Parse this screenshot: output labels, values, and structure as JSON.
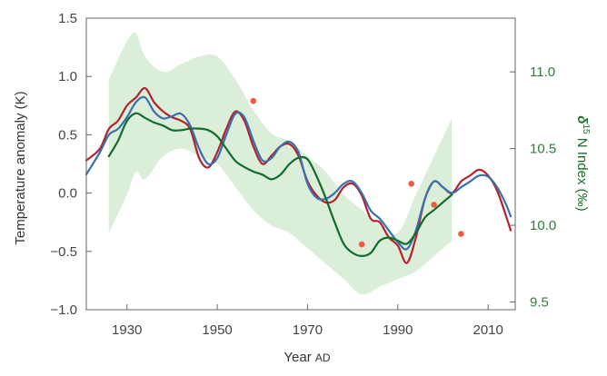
{
  "chart_data": {
    "type": "line",
    "xlabel": "Year",
    "xlabel_suffix": "AD",
    "ylabel": "Temperature anomaly  (K)",
    "ylabel_right_symbol": "δ",
    "ylabel_right_sup": "15",
    "ylabel_right_rest": " N Index  (‰)",
    "xlim": [
      1921,
      2016
    ],
    "ylim": [
      -1.0,
      1.5
    ],
    "ylim_right": [
      9.45,
      11.35
    ],
    "x_ticks": [
      1930,
      1950,
      1970,
      1990,
      2010
    ],
    "x_tick_labels": [
      "1930",
      "1950",
      "1970",
      "1990",
      "2010"
    ],
    "y_ticks": [
      -1.0,
      -0.5,
      0.0,
      0.5,
      1.0,
      1.5
    ],
    "y_tick_labels": [
      "−1.0",
      "−0.5",
      "0.0",
      "0.5",
      "1.0",
      "1.5"
    ],
    "y_right_ticks": [
      9.5,
      10.0,
      10.5,
      11.0
    ],
    "y_right_tick_labels": [
      "9.5",
      "10.0",
      "10.5",
      "11.0"
    ],
    "colors": {
      "red": "#b3232a",
      "blue": "#3a6fb0",
      "green": "#136b2e",
      "band": "#cfe8cc",
      "points": "#ef5a3c",
      "axis": "#666666",
      "right_axis": "#2e7d3a"
    },
    "band": {
      "x": [
        1926,
        1930,
        1932,
        1934,
        1938,
        1942,
        1946,
        1950,
        1954,
        1958,
        1962,
        1966,
        1970,
        1974,
        1978,
        1982,
        1986,
        1990,
        1994,
        1998,
        2002
      ],
      "upper": [
        10.95,
        11.2,
        11.25,
        11.1,
        11.0,
        11.05,
        11.1,
        11.1,
        10.95,
        10.75,
        10.6,
        10.55,
        10.45,
        10.35,
        10.2,
        10.1,
        10.0,
        9.95,
        10.2,
        10.45,
        10.7
      ],
      "lower": [
        9.95,
        10.2,
        10.35,
        10.3,
        10.45,
        10.5,
        10.45,
        10.4,
        10.25,
        10.1,
        10.0,
        9.95,
        9.85,
        9.75,
        9.65,
        9.55,
        9.6,
        9.65,
        9.7,
        9.8,
        9.9
      ]
    },
    "series": [
      {
        "axis": "left",
        "x": [
          1921,
          1924,
          1926,
          1928,
          1930,
          1932,
          1934,
          1936,
          1938,
          1940,
          1942,
          1944,
          1946,
          1948,
          1950,
          1952,
          1954,
          1956,
          1958,
          1960,
          1962,
          1964,
          1966,
          1968,
          1970,
          1972,
          1974,
          1976,
          1978,
          1980,
          1982,
          1984,
          1986,
          1988,
          1990,
          1992,
          1994,
          1996,
          1998,
          2000,
          2002,
          2004,
          2006,
          2008,
          2010,
          2012,
          2014,
          2015
        ],
        "y": [
          0.28,
          0.38,
          0.55,
          0.62,
          0.75,
          0.82,
          0.9,
          0.78,
          0.7,
          0.65,
          0.62,
          0.55,
          0.3,
          0.22,
          0.35,
          0.55,
          0.7,
          0.62,
          0.4,
          0.25,
          0.32,
          0.4,
          0.42,
          0.32,
          0.1,
          -0.02,
          -0.08,
          -0.06,
          0.05,
          0.08,
          -0.02,
          -0.22,
          -0.25,
          -0.38,
          -0.45,
          -0.6,
          -0.38,
          -0.05,
          0.1,
          0.05,
          0.0,
          0.1,
          0.15,
          0.2,
          0.15,
          0.02,
          -0.2,
          -0.32
        ]
      },
      {
        "axis": "left",
        "x": [
          1921,
          1924,
          1926,
          1928,
          1930,
          1932,
          1934,
          1936,
          1938,
          1940,
          1942,
          1944,
          1946,
          1948,
          1950,
          1952,
          1954,
          1956,
          1958,
          1960,
          1962,
          1964,
          1966,
          1968,
          1970,
          1972,
          1974,
          1976,
          1978,
          1980,
          1982,
          1984,
          1986,
          1988,
          1990,
          1992,
          1994,
          1996,
          1998,
          2000,
          2002,
          2004,
          2006,
          2008,
          2010,
          2012,
          2014,
          2015
        ],
        "y": [
          0.16,
          0.35,
          0.5,
          0.55,
          0.65,
          0.78,
          0.82,
          0.7,
          0.64,
          0.66,
          0.68,
          0.58,
          0.38,
          0.25,
          0.3,
          0.5,
          0.68,
          0.65,
          0.45,
          0.28,
          0.3,
          0.4,
          0.44,
          0.35,
          0.08,
          -0.04,
          -0.05,
          0.0,
          0.08,
          0.1,
          0.0,
          -0.15,
          -0.22,
          -0.32,
          -0.42,
          -0.48,
          -0.32,
          -0.05,
          0.1,
          0.05,
          0.0,
          0.05,
          0.1,
          0.15,
          0.14,
          0.05,
          -0.1,
          -0.2
        ]
      },
      {
        "axis": "right",
        "x": [
          1926,
          1928,
          1930,
          1932,
          1934,
          1936,
          1938,
          1940,
          1942,
          1944,
          1946,
          1948,
          1950,
          1952,
          1954,
          1956,
          1958,
          1960,
          1962,
          1964,
          1966,
          1968,
          1970,
          1972,
          1974,
          1976,
          1978,
          1980,
          1982,
          1984,
          1986,
          1988,
          1990,
          1992,
          1994,
          1996,
          1998,
          2000,
          2002
        ],
        "y": [
          10.45,
          10.55,
          10.68,
          10.73,
          10.7,
          10.67,
          10.65,
          10.62,
          10.62,
          10.63,
          10.63,
          10.62,
          10.58,
          10.5,
          10.42,
          10.38,
          10.35,
          10.33,
          10.3,
          10.33,
          10.4,
          10.44,
          10.43,
          10.32,
          10.18,
          10.02,
          9.88,
          9.82,
          9.8,
          9.82,
          9.9,
          9.92,
          9.9,
          9.88,
          9.95,
          10.05,
          10.1,
          10.15,
          10.2
        ]
      }
    ],
    "points": {
      "axis": "left",
      "x": [
        1958,
        1982,
        1993,
        1998,
        2004
      ],
      "y": [
        0.79,
        -0.44,
        0.08,
        -0.1,
        -0.35
      ]
    }
  }
}
